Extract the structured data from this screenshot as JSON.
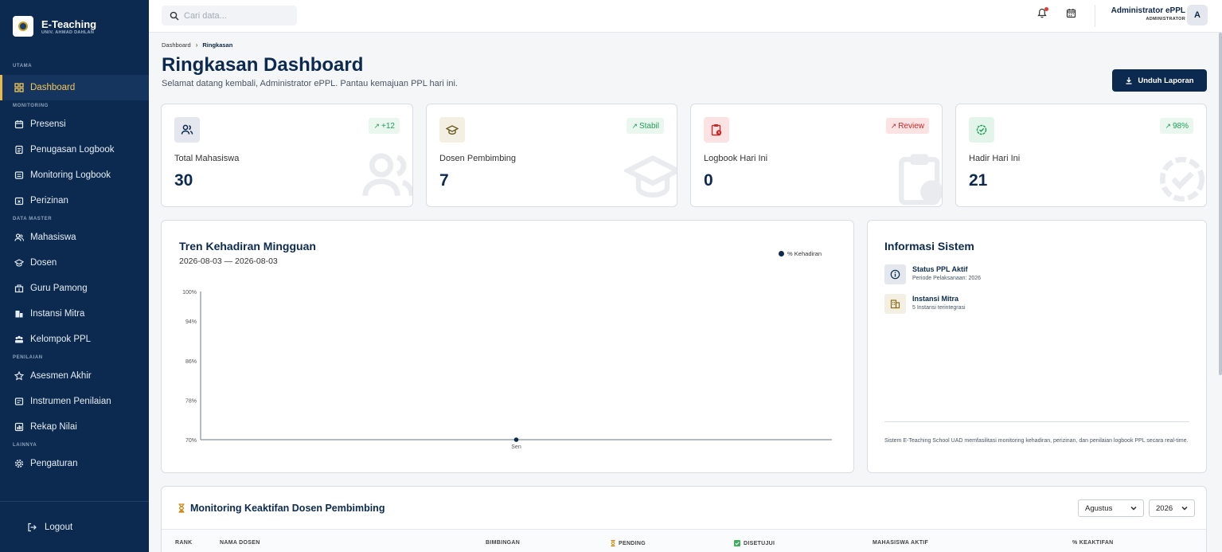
{
  "brand": {
    "title": "E-Teaching",
    "subtitle": "UNIV. AHMAD DAHLAN"
  },
  "sidebar": {
    "sections": [
      {
        "label": "UTAMA"
      },
      {
        "label": "MONITORING"
      },
      {
        "label": "DATA MASTER"
      },
      {
        "label": "PENILAIAN"
      },
      {
        "label": "LAINNYA"
      }
    ],
    "items": [
      {
        "label": "Dashboard",
        "icon": "grid-icon",
        "active": true
      },
      {
        "label": "Presensi",
        "icon": "calendar-icon"
      },
      {
        "label": "Penugasan Logbook",
        "icon": "document-icon"
      },
      {
        "label": "Monitoring Logbook",
        "icon": "list-icon"
      },
      {
        "label": "Perizinan",
        "icon": "calendar-x-icon"
      },
      {
        "label": "Mahasiswa",
        "icon": "users-icon"
      },
      {
        "label": "Dosen",
        "icon": "graduation-cap-icon"
      },
      {
        "label": "Guru Pamong",
        "icon": "school-icon"
      },
      {
        "label": "Instansi Mitra",
        "icon": "building-icon"
      },
      {
        "label": "Kelompok PPL",
        "icon": "group-icon"
      },
      {
        "label": "Asesmen Akhir",
        "icon": "star-icon"
      },
      {
        "label": "Instrumen Penilaian",
        "icon": "form-icon"
      },
      {
        "label": "Rekap Nilai",
        "icon": "report-icon"
      },
      {
        "label": "Pengaturan",
        "icon": "gear-icon"
      }
    ],
    "logout": "Logout"
  },
  "topbar": {
    "search_placeholder": "Cari data...",
    "user_name": "Administrator ePPL",
    "user_role": "ADMINISTRATOR",
    "avatar_initial": "A"
  },
  "breadcrumb": {
    "parent": "Dashboard",
    "current": "Ringkasan"
  },
  "page": {
    "title": "Ringkasan Dashboard",
    "subtitle": "Selamat datang kembali, Administrator ePPL. Pantau kemajuan PPL hari ini.",
    "download_label": "Unduh Laporan"
  },
  "stats": [
    {
      "label": "Total Mahasiswa",
      "value": "30",
      "badge": "+12",
      "icon": "users-icon",
      "tone": "green"
    },
    {
      "label": "Dosen Pembimbing",
      "value": "7",
      "badge": "Stabil",
      "icon": "graduation-cap-icon",
      "tone": "green"
    },
    {
      "label": "Logbook Hari Ini",
      "value": "0",
      "badge": "Review",
      "icon": "clipboard-clock-icon",
      "tone": "red"
    },
    {
      "label": "Hadir Hari Ini",
      "value": "21",
      "badge": "98%",
      "icon": "badge-check-icon",
      "tone": "green"
    }
  ],
  "chart_data": {
    "type": "line",
    "title": "Tren Kehadiran Mingguan",
    "subtitle": "2026-08-03 — 2026-08-03",
    "categories": [
      "Sen"
    ],
    "series": [
      {
        "name": "% Kehadiran",
        "values": [
          70
        ]
      }
    ],
    "ylim": [
      70,
      100
    ],
    "yticks": [
      "70%",
      "78%",
      "86%",
      "94%",
      "100%"
    ],
    "ytick_values": [
      70,
      78,
      86,
      94,
      100
    ],
    "legend": "top-right",
    "color": "#0c2a4f"
  },
  "info": {
    "title": "Informasi Sistem",
    "rows": [
      {
        "title": "Status PPL Aktif",
        "desc": "Periode Pelaksanaan: 2026",
        "icon": "info-icon"
      },
      {
        "title": "Instansi Mitra",
        "desc": "5 Instansi terintegrasi",
        "icon": "building-icon"
      }
    ],
    "footer": "Sistem E-Teaching School UAD memfasilitasi monitoring kehadiran, perizinan, dan penilaian logbook PPL secara real-time."
  },
  "monitoring": {
    "title": "Monitoring Keaktifan Dosen Pembimbing",
    "month": "Agustus",
    "year": "2026",
    "columns": [
      "RANK",
      "NAMA DOSEN",
      "BIMBINGAN",
      "PENDING",
      "DISETUJUI",
      "MAHASISWA AKTIF",
      "% KEAKTIFAN"
    ]
  }
}
